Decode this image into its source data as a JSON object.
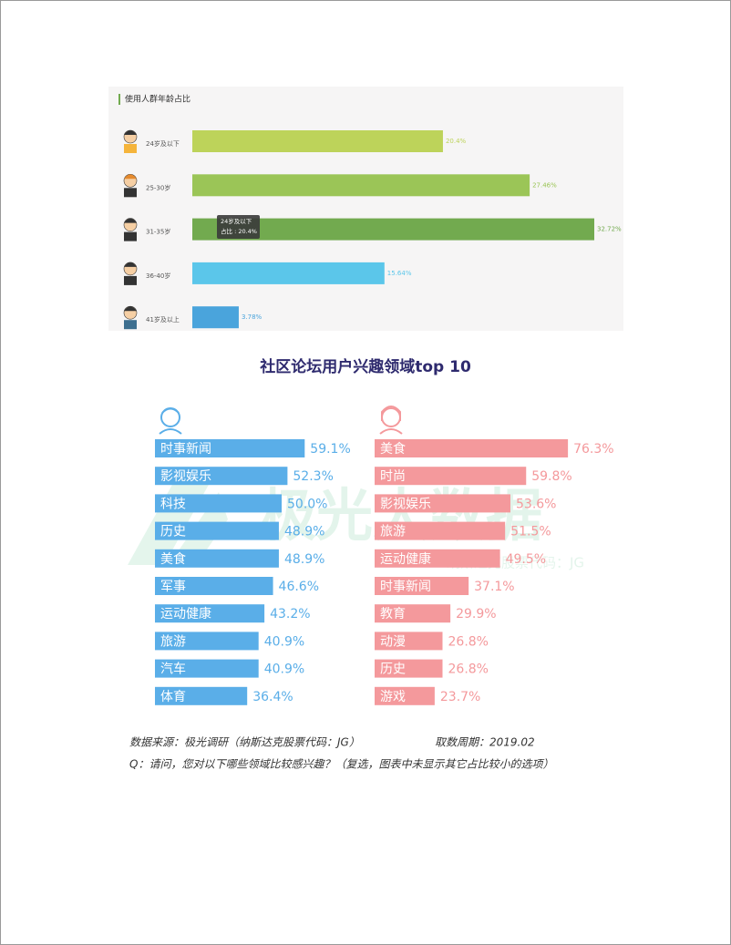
{
  "chart_data": [
    {
      "type": "bar",
      "title": "使用人群年龄占比",
      "categories": [
        "24岁及以下",
        "25-30岁",
        "31-35岁",
        "36-40岁",
        "41岁及以上"
      ],
      "values": [
        20.4,
        27.46,
        32.72,
        15.64,
        3.78
      ],
      "value_labels": [
        "20.4%",
        "27.46%",
        "32.72%",
        "15.64%",
        "3.78%"
      ],
      "colors": [
        "#bdd35a",
        "#9bc557",
        "#72aa4f",
        "#5bc6ea",
        "#4aa4dc"
      ],
      "tooltip": [
        "24岁及以下",
        "占比 : 20.4%"
      ]
    },
    {
      "type": "bar",
      "title": "社区论坛用户兴趣领域top 10",
      "categories": [
        "时事新闻",
        "影视娱乐",
        "科技",
        "历史",
        "美食",
        "军事",
        "运动健康",
        "旅游",
        "汽车",
        "体育"
      ],
      "values": [
        59.1,
        52.3,
        50.0,
        48.9,
        48.9,
        46.6,
        43.2,
        40.9,
        40.9,
        36.4
      ],
      "value_labels": [
        "59.1%",
        "52.3%",
        "50.0%",
        "48.9%",
        "48.9%",
        "46.6%",
        "43.2%",
        "40.9%",
        "40.9%",
        "36.4%"
      ],
      "color": "#5aaee8"
    },
    {
      "type": "bar",
      "categories": [
        "美食",
        "时尚",
        "影视娱乐",
        "旅游",
        "运动健康",
        "时事新闻",
        "教育",
        "动漫",
        "历史",
        "游戏"
      ],
      "values": [
        76.3,
        59.8,
        53.6,
        51.5,
        49.5,
        37.1,
        29.9,
        26.8,
        26.8,
        23.7
      ],
      "value_labels": [
        "76.3%",
        "59.8%",
        "53.6%",
        "51.5%",
        "49.5%",
        "37.1%",
        "29.9%",
        "26.8%",
        "26.8%",
        "23.7%"
      ],
      "color": "#f4999c"
    }
  ],
  "watermark": [
    "极光大数据",
    "纳斯达克股票代码：JG"
  ],
  "source": "数据来源：极光调研（纳斯达克股票代码：JG）",
  "period": "取数周期：2019.02",
  "question": "Q：请问，您对以下哪些领域比较感兴趣？（复选，图表中未显示其它占比较小的选项）"
}
